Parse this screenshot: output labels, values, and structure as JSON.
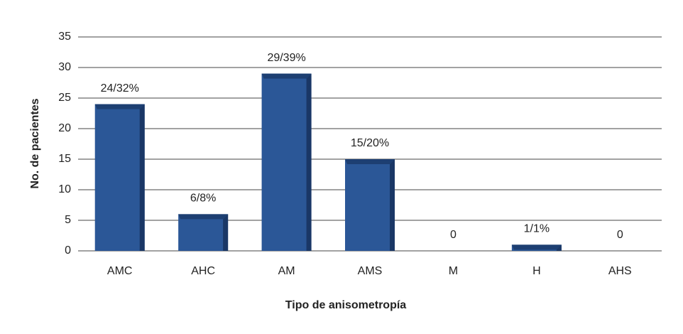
{
  "chart_data": {
    "type": "bar",
    "categories": [
      "AMC",
      "AHC",
      "AM",
      "AMS",
      "M",
      "H",
      "AHS"
    ],
    "values": [
      24,
      6,
      29,
      15,
      0,
      1,
      0
    ],
    "value_labels": [
      "24/32%",
      "6/8%",
      "29/39%",
      "15/20%",
      "0",
      "1/1%",
      "0"
    ],
    "color": "#2b5797",
    "ylim": [
      0,
      35
    ],
    "yticks": [
      0,
      5,
      10,
      15,
      20,
      25,
      30,
      35
    ],
    "grid": true,
    "ylabel": "No. de pacientes",
    "xlabel": "Tipo de anisometropía"
  }
}
